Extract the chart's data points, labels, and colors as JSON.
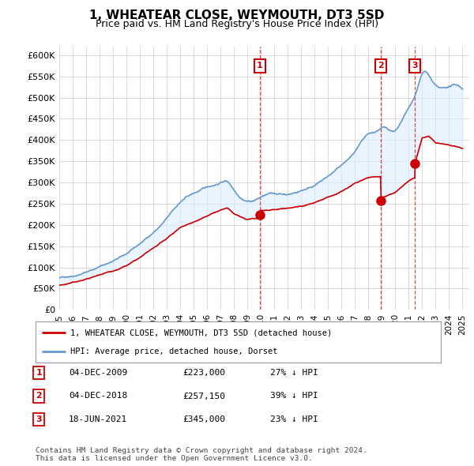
{
  "title": "1, WHEATEAR CLOSE, WEYMOUTH, DT3 5SD",
  "subtitle": "Price paid vs. HM Land Registry's House Price Index (HPI)",
  "ylabel_ticks": [
    "£0",
    "£50K",
    "£100K",
    "£150K",
    "£200K",
    "£250K",
    "£300K",
    "£350K",
    "£400K",
    "£450K",
    "£500K",
    "£550K",
    "£600K"
  ],
  "ytick_values": [
    0,
    50000,
    100000,
    150000,
    200000,
    250000,
    300000,
    350000,
    400000,
    450000,
    500000,
    550000,
    600000
  ],
  "xmin": 1995.0,
  "xmax": 2025.5,
  "ymin": 0,
  "ymax": 620000,
  "sale_dates": [
    2009.92,
    2018.92,
    2021.46
  ],
  "sale_prices": [
    223000,
    257150,
    345000
  ],
  "sale_labels": [
    "1",
    "2",
    "3"
  ],
  "legend_line1": "1, WHEATEAR CLOSE, WEYMOUTH, DT3 5SD (detached house)",
  "legend_line2": "HPI: Average price, detached house, Dorset",
  "table_data": [
    [
      "1",
      "04-DEC-2009",
      "£223,000",
      "27% ↓ HPI"
    ],
    [
      "2",
      "04-DEC-2018",
      "£257,150",
      "39% ↓ HPI"
    ],
    [
      "3",
      "18-JUN-2021",
      "£345,000",
      "23% ↓ HPI"
    ]
  ],
  "footnote": "Contains HM Land Registry data © Crown copyright and database right 2024.\nThis data is licensed under the Open Government Licence v3.0.",
  "red_color": "#cc0000",
  "blue_color": "#6699cc",
  "fill_color": "#ddeeff",
  "grid_color": "#cccccc",
  "bg_color": "#ffffff"
}
